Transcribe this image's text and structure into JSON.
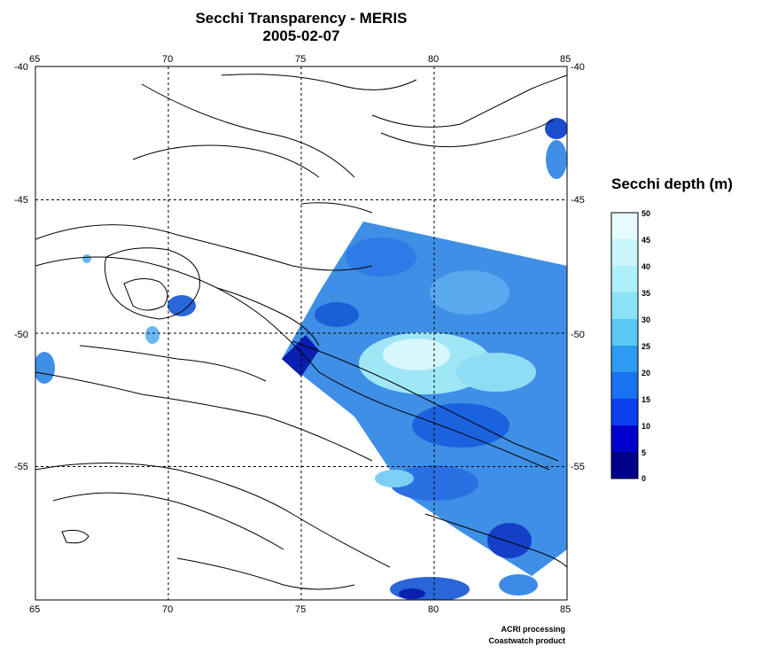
{
  "title": {
    "line1": "Secchi Transparency - MERIS",
    "line2": "2005-02-07"
  },
  "map": {
    "lon_range": [
      65,
      85
    ],
    "lat_range": [
      -60,
      -40
    ],
    "lon_ticks": [
      "65",
      "70",
      "75",
      "80",
      "85"
    ],
    "lat_ticks": [
      "-40",
      "-45",
      "-50",
      "-55"
    ],
    "grid": "dashed"
  },
  "colorbar": {
    "title": "Secchi depth (m)",
    "ticks": [
      "50",
      "45",
      "40",
      "35",
      "30",
      "25",
      "20",
      "15",
      "10",
      "5",
      "0"
    ],
    "colors_low_to_high": [
      "#00008b",
      "#0000cd",
      "#0a3ff0",
      "#1a72f0",
      "#2e9cf2",
      "#5ac8f5",
      "#8be3f7",
      "#aef0f9",
      "#c8f6fb",
      "#e6fbfd"
    ]
  },
  "credits": {
    "line1": "ACRI processing",
    "line2": "Coastwatch product"
  }
}
